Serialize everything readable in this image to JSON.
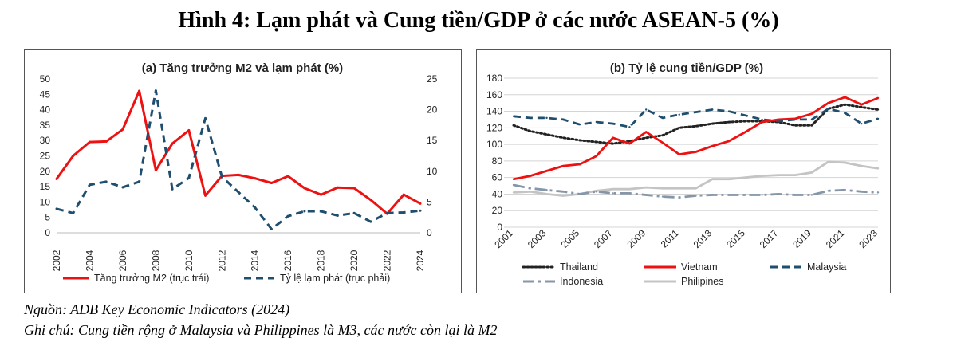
{
  "figure_title": "Hình 4: Lạm phát và Cung tiền/GDP ở các nước ASEAN-5 (%)",
  "source_note": "Nguồn: ADB Key Economic Indicators (2024)",
  "comment_note": "Ghi chú: Cung tiền rộng ở Malaysia và Philippines là M3, các nước còn lại là M2",
  "chart_data": [
    {
      "type": "line",
      "title": "(a) Tăng trưởng M2 và lạm phát (%)",
      "x": [
        2002,
        2003,
        2004,
        2005,
        2006,
        2007,
        2008,
        2009,
        2010,
        2011,
        2012,
        2013,
        2014,
        2015,
        2016,
        2017,
        2018,
        2019,
        2020,
        2021,
        2022,
        2023,
        2024
      ],
      "x_ticks": [
        "2002",
        "2004",
        "2006",
        "2008",
        "2010",
        "2012",
        "2014",
        "2016",
        "2018",
        "2020",
        "2022",
        "2024"
      ],
      "y_left": {
        "range": [
          0,
          50
        ],
        "ticks": [
          "0",
          "5",
          "10",
          "15",
          "20",
          "25",
          "30",
          "35",
          "40",
          "45",
          "50"
        ]
      },
      "y_right": {
        "range": [
          0,
          25
        ],
        "ticks": [
          "0",
          "5",
          "10",
          "15",
          "20",
          "25"
        ]
      },
      "series": [
        {
          "name": "Tăng trưởng M2 (trục trái)",
          "axis": "left",
          "color": "#ee1111",
          "style": "solid",
          "values": [
            17.5,
            25,
            29.5,
            29.7,
            33.6,
            46.1,
            20.3,
            29,
            33.3,
            12.1,
            18.5,
            18.8,
            17.7,
            16.2,
            18.4,
            14.5,
            12.4,
            14.7,
            14.5,
            10.7,
            6.2,
            12.4,
            9.5
          ]
        },
        {
          "name": "Tỷ lệ lạm phát (trục phải)",
          "axis": "right",
          "color": "#1f4e6e",
          "style": "dashed",
          "values": [
            3.9,
            3.2,
            7.8,
            8.3,
            7.4,
            8.3,
            23.1,
            7.1,
            8.9,
            18.6,
            9.1,
            6.6,
            4.1,
            0.6,
            2.7,
            3.5,
            3.5,
            2.8,
            3.2,
            1.8,
            3.2,
            3.3,
            3.6
          ]
        }
      ]
    },
    {
      "type": "line",
      "title": "(b) Tỷ lệ cung tiền/GDP (%)",
      "x": [
        2001,
        2002,
        2003,
        2004,
        2005,
        2006,
        2007,
        2008,
        2009,
        2010,
        2011,
        2012,
        2013,
        2014,
        2015,
        2016,
        2017,
        2018,
        2019,
        2020,
        2021,
        2022,
        2023
      ],
      "x_ticks": [
        "2001",
        "2003",
        "2005",
        "2007",
        "2009",
        "2011",
        "2013",
        "2015",
        "2017",
        "2019",
        "2021",
        "2023"
      ],
      "y": {
        "range": [
          0,
          180
        ],
        "ticks": [
          "0",
          "20",
          "40",
          "60",
          "80",
          "100",
          "120",
          "140",
          "160",
          "180"
        ]
      },
      "series": [
        {
          "name": "Thailand",
          "color": "#222222",
          "style": "dotted",
          "values": [
            123,
            116,
            112,
            108,
            105,
            103,
            101,
            104,
            108,
            111,
            120,
            122,
            125,
            127,
            128,
            128,
            127,
            123,
            123,
            143,
            148,
            145,
            142
          ]
        },
        {
          "name": "Vietnam",
          "color": "#ee1111",
          "style": "solid",
          "values": [
            58,
            62,
            68,
            74,
            76,
            86,
            108,
            101,
            115,
            102,
            88,
            91,
            98,
            104,
            115,
            127,
            130,
            131,
            137,
            150,
            157,
            148,
            156
          ]
        },
        {
          "name": "Malaysia",
          "color": "#1f4e6e",
          "style": "dashed",
          "values": [
            134,
            132,
            132,
            130,
            124,
            127,
            125,
            121,
            142,
            132,
            136,
            139,
            142,
            140,
            135,
            130,
            128,
            130,
            130,
            143,
            138,
            125,
            131
          ]
        },
        {
          "name": "Indonesia",
          "color": "#8496a8",
          "style": "dashdot",
          "values": [
            51,
            47,
            45,
            43,
            40,
            43,
            41,
            41,
            39,
            37,
            36,
            38,
            39,
            39,
            39,
            39,
            40,
            39,
            39,
            44,
            45,
            43,
            42
          ]
        },
        {
          "name": "Philipines",
          "color": "#c4c4c4",
          "style": "solid",
          "values": [
            42,
            43,
            40,
            38,
            40,
            44,
            46,
            46,
            48,
            47,
            47,
            47,
            58,
            58,
            60,
            62,
            63,
            63,
            66,
            79,
            78,
            74,
            71
          ]
        }
      ]
    }
  ]
}
